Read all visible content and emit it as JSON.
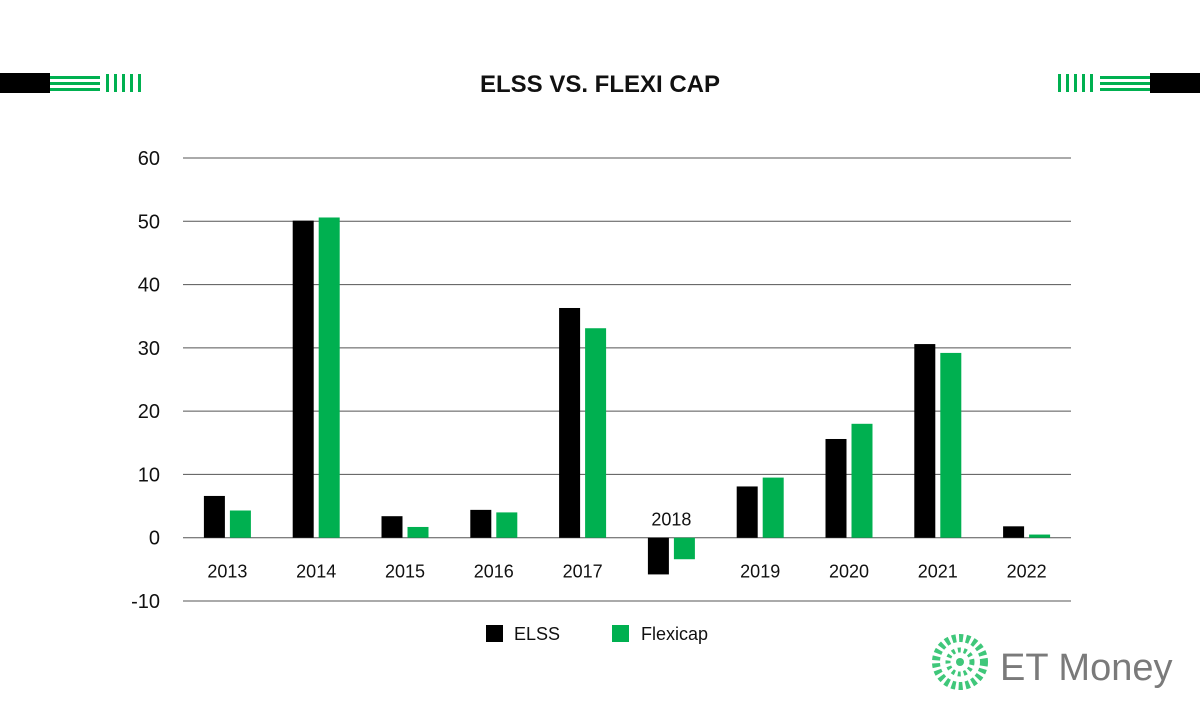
{
  "colors": {
    "elss": "#000000",
    "flexicap": "#00b050",
    "grid": "#555555",
    "brand_gray": "#7a7a7a"
  },
  "brand": {
    "name": "ET Money",
    "logo_icon": "et-money-logo-icon"
  },
  "chart_data": {
    "type": "bar",
    "title": "ELSS VS. FLEXI CAP",
    "xlabel": "",
    "ylabel": "",
    "categories": [
      "2013",
      "2014",
      "2015",
      "2016",
      "2017",
      "2018",
      "2019",
      "2020",
      "2021",
      "2022"
    ],
    "series": [
      {
        "name": "ELSS",
        "values": [
          6.6,
          50.1,
          3.4,
          4.4,
          36.3,
          -5.8,
          8.1,
          15.6,
          30.6,
          1.8
        ]
      },
      {
        "name": "Flexicap",
        "values": [
          4.3,
          50.6,
          1.7,
          4.0,
          33.1,
          -3.4,
          9.5,
          18.0,
          29.2,
          0.5
        ]
      }
    ],
    "ylim": [
      -10,
      60
    ],
    "yticks": [
      "60",
      "50",
      "40",
      "30",
      "20",
      "10",
      "0",
      "-10"
    ],
    "grid": true,
    "legend_position": "bottom-center"
  }
}
